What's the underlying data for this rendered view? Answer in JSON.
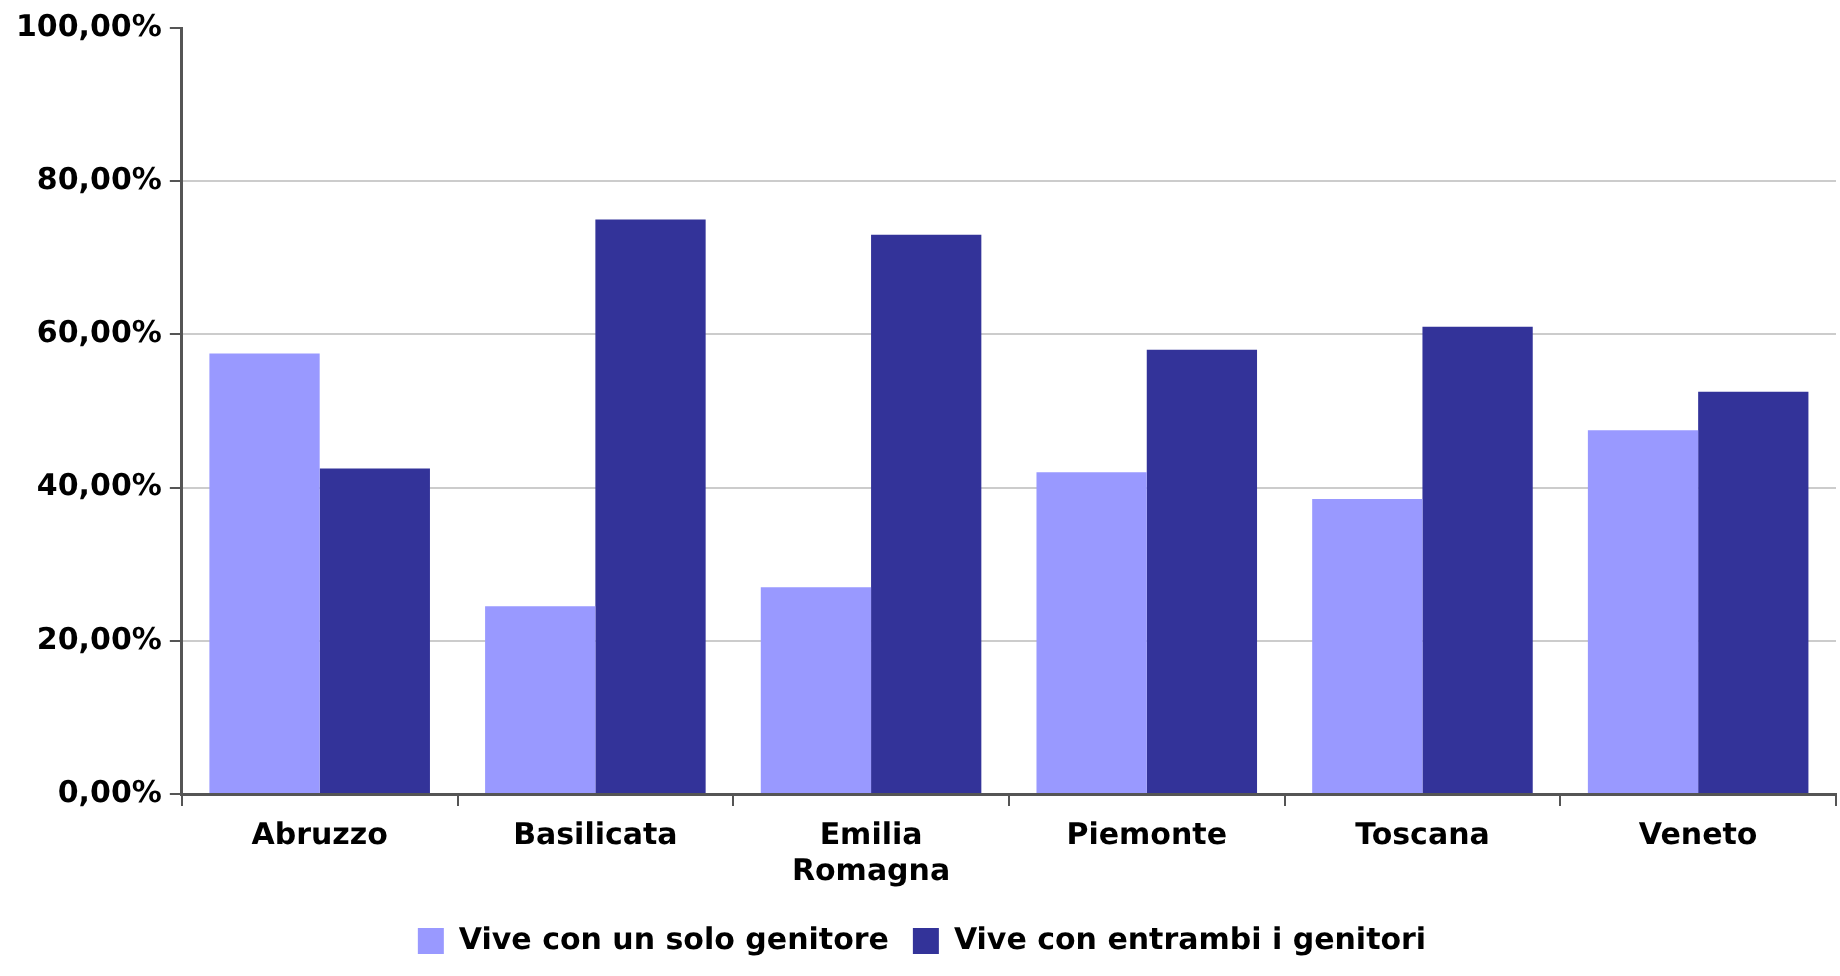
{
  "chart_data": {
    "type": "bar",
    "categories": [
      "Abruzzo",
      "Basilicata",
      "Emilia Romagna",
      "Piemonte",
      "Toscana",
      "Veneto"
    ],
    "series": [
      {
        "name": "Vive con un solo genitore",
        "color": "#9999ff",
        "values": [
          57.5,
          24.5,
          27,
          42,
          38.5,
          47.5
        ]
      },
      {
        "name": "Vive con entrambi i genitori",
        "color": "#333399",
        "values": [
          42.5,
          75,
          73,
          58,
          61,
          52.5
        ]
      }
    ],
    "ylim": [
      0,
      100
    ],
    "yticks": [
      {
        "value": 0,
        "label": "0,00%"
      },
      {
        "value": 20,
        "label": "20,00%"
      },
      {
        "value": 40,
        "label": "40,00%"
      },
      {
        "value": 60,
        "label": "60,00%"
      },
      {
        "value": 80,
        "label": "80,00%"
      },
      {
        "value": 100,
        "label": "100,00%"
      }
    ],
    "grid": "y",
    "legend": "bottom"
  }
}
